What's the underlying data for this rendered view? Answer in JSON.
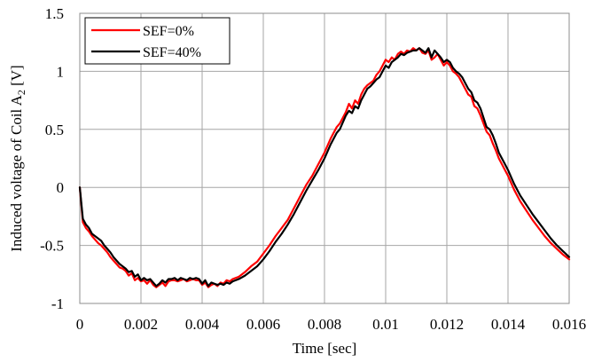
{
  "chart_data": {
    "type": "line",
    "title": "",
    "xlabel": "Time [sec]",
    "ylabel_main": "Induced voltage of Coil A",
    "ylabel_sub": "2",
    "ylabel_unit": " [V]",
    "xlim": [
      0,
      0.016
    ],
    "ylim": [
      -1,
      1.5
    ],
    "xticks": [
      "0",
      "0.002",
      "0.004",
      "0.006",
      "0.008",
      "0.01",
      "0.012",
      "0.014",
      "0.016"
    ],
    "yticks": [
      "1.5",
      "1",
      "0.5",
      "0",
      "-0.5",
      "-1"
    ],
    "grid": true,
    "legend_position": "top-left",
    "series": [
      {
        "name": "SEF=0%",
        "color": "#ff0000",
        "x": [
          0,
          0.0001,
          0.0002,
          0.0003,
          0.0004,
          0.0005,
          0.0006,
          0.0007,
          0.0008,
          0.0009,
          0.001,
          0.0011,
          0.0012,
          0.0013,
          0.0014,
          0.0015,
          0.0016,
          0.0017,
          0.0018,
          0.0019,
          0.002,
          0.0021,
          0.0022,
          0.0023,
          0.0024,
          0.0025,
          0.0026,
          0.0027,
          0.0028,
          0.0029,
          0.003,
          0.0031,
          0.0032,
          0.0033,
          0.0034,
          0.0035,
          0.0036,
          0.0037,
          0.0038,
          0.0039,
          0.004,
          0.0041,
          0.0042,
          0.0043,
          0.0044,
          0.0045,
          0.0046,
          0.0047,
          0.0048,
          0.0049,
          0.005,
          0.0052,
          0.0054,
          0.0056,
          0.0058,
          0.006,
          0.0062,
          0.0064,
          0.0066,
          0.0068,
          0.007,
          0.0072,
          0.0074,
          0.0076,
          0.0078,
          0.008,
          0.0082,
          0.0084,
          0.0085,
          0.0086,
          0.0087,
          0.0088,
          0.0089,
          0.009,
          0.0091,
          0.0092,
          0.0093,
          0.0094,
          0.0095,
          0.0096,
          0.0097,
          0.0098,
          0.0099,
          0.01,
          0.0101,
          0.0102,
          0.0103,
          0.0104,
          0.0105,
          0.0106,
          0.0107,
          0.0108,
          0.0109,
          0.011,
          0.0111,
          0.0112,
          0.0113,
          0.0114,
          0.0115,
          0.0116,
          0.0117,
          0.0118,
          0.0119,
          0.012,
          0.0121,
          0.0122,
          0.0123,
          0.0124,
          0.0125,
          0.0126,
          0.0127,
          0.0128,
          0.0129,
          0.013,
          0.0131,
          0.0132,
          0.0133,
          0.0134,
          0.0135,
          0.0136,
          0.0137,
          0.0138,
          0.0139,
          0.014,
          0.0142,
          0.0144,
          0.0146,
          0.0148,
          0.015,
          0.0152,
          0.0154,
          0.0156,
          0.0158,
          0.016
        ],
        "values": [
          0,
          -0.3,
          -0.35,
          -0.38,
          -0.42,
          -0.45,
          -0.48,
          -0.5,
          -0.53,
          -0.56,
          -0.6,
          -0.63,
          -0.66,
          -0.69,
          -0.7,
          -0.72,
          -0.76,
          -0.74,
          -0.8,
          -0.78,
          -0.81,
          -0.8,
          -0.83,
          -0.8,
          -0.84,
          -0.86,
          -0.84,
          -0.82,
          -0.85,
          -0.81,
          -0.8,
          -0.8,
          -0.81,
          -0.8,
          -0.79,
          -0.81,
          -0.8,
          -0.79,
          -0.8,
          -0.8,
          -0.84,
          -0.82,
          -0.86,
          -0.84,
          -0.83,
          -0.85,
          -0.82,
          -0.83,
          -0.8,
          -0.81,
          -0.79,
          -0.77,
          -0.73,
          -0.68,
          -0.64,
          -0.57,
          -0.5,
          -0.42,
          -0.35,
          -0.28,
          -0.18,
          -0.08,
          0.02,
          0.1,
          0.2,
          0.3,
          0.42,
          0.52,
          0.55,
          0.6,
          0.65,
          0.72,
          0.68,
          0.75,
          0.72,
          0.8,
          0.85,
          0.88,
          0.9,
          0.92,
          0.97,
          1.0,
          1.05,
          1.1,
          1.08,
          1.12,
          1.1,
          1.15,
          1.17,
          1.15,
          1.18,
          1.17,
          1.2,
          1.18,
          1.2,
          1.16,
          1.15,
          1.18,
          1.1,
          1.12,
          1.15,
          1.1,
          1.05,
          1.08,
          1.05,
          1.0,
          0.98,
          0.95,
          0.9,
          0.85,
          0.8,
          0.78,
          0.7,
          0.68,
          0.62,
          0.55,
          0.48,
          0.45,
          0.38,
          0.32,
          0.25,
          0.2,
          0.15,
          0.1,
          -0.02,
          -0.12,
          -0.2,
          -0.28,
          -0.35,
          -0.42,
          -0.48,
          -0.53,
          -0.58,
          -0.62
        ]
      },
      {
        "name": "SEF=40%",
        "color": "#000000",
        "x": [
          0,
          0.0001,
          0.0002,
          0.0003,
          0.0004,
          0.0005,
          0.0006,
          0.0007,
          0.0008,
          0.0009,
          0.001,
          0.0011,
          0.0012,
          0.0013,
          0.0014,
          0.0015,
          0.0016,
          0.0017,
          0.0018,
          0.0019,
          0.002,
          0.0021,
          0.0022,
          0.0023,
          0.0024,
          0.0025,
          0.0026,
          0.0027,
          0.0028,
          0.0029,
          0.003,
          0.0031,
          0.0032,
          0.0033,
          0.0034,
          0.0035,
          0.0036,
          0.0037,
          0.0038,
          0.0039,
          0.004,
          0.0041,
          0.0042,
          0.0043,
          0.0044,
          0.0045,
          0.0046,
          0.0047,
          0.0048,
          0.0049,
          0.005,
          0.0052,
          0.0054,
          0.0056,
          0.0058,
          0.006,
          0.0062,
          0.0064,
          0.0066,
          0.0068,
          0.007,
          0.0072,
          0.0074,
          0.0076,
          0.0078,
          0.008,
          0.0082,
          0.0084,
          0.0085,
          0.0086,
          0.0087,
          0.0088,
          0.0089,
          0.009,
          0.0091,
          0.0092,
          0.0093,
          0.0094,
          0.0095,
          0.0096,
          0.0097,
          0.0098,
          0.0099,
          0.01,
          0.0101,
          0.0102,
          0.0103,
          0.0104,
          0.0105,
          0.0106,
          0.0107,
          0.0108,
          0.0109,
          0.011,
          0.0111,
          0.0112,
          0.0113,
          0.0114,
          0.0115,
          0.0116,
          0.0117,
          0.0118,
          0.0119,
          0.012,
          0.0121,
          0.0122,
          0.0123,
          0.0124,
          0.0125,
          0.0126,
          0.0127,
          0.0128,
          0.0129,
          0.013,
          0.0131,
          0.0132,
          0.0133,
          0.0134,
          0.0135,
          0.0136,
          0.0137,
          0.0138,
          0.0139,
          0.014,
          0.0142,
          0.0144,
          0.0146,
          0.0148,
          0.015,
          0.0152,
          0.0154,
          0.0156,
          0.0158,
          0.016
        ],
        "values": [
          0,
          -0.27,
          -0.32,
          -0.35,
          -0.4,
          -0.42,
          -0.44,
          -0.46,
          -0.5,
          -0.53,
          -0.56,
          -0.6,
          -0.63,
          -0.66,
          -0.68,
          -0.7,
          -0.73,
          -0.72,
          -0.77,
          -0.75,
          -0.8,
          -0.78,
          -0.8,
          -0.79,
          -0.82,
          -0.85,
          -0.83,
          -0.8,
          -0.82,
          -0.79,
          -0.79,
          -0.78,
          -0.8,
          -0.78,
          -0.79,
          -0.8,
          -0.78,
          -0.79,
          -0.78,
          -0.79,
          -0.83,
          -0.8,
          -0.85,
          -0.82,
          -0.83,
          -0.84,
          -0.83,
          -0.84,
          -0.82,
          -0.83,
          -0.81,
          -0.79,
          -0.76,
          -0.72,
          -0.68,
          -0.62,
          -0.55,
          -0.47,
          -0.4,
          -0.32,
          -0.23,
          -0.13,
          -0.03,
          0.06,
          0.15,
          0.25,
          0.37,
          0.47,
          0.5,
          0.56,
          0.62,
          0.66,
          0.64,
          0.7,
          0.68,
          0.75,
          0.8,
          0.85,
          0.87,
          0.9,
          0.93,
          0.95,
          1.0,
          1.05,
          1.03,
          1.08,
          1.1,
          1.12,
          1.15,
          1.14,
          1.16,
          1.17,
          1.18,
          1.18,
          1.2,
          1.18,
          1.16,
          1.2,
          1.12,
          1.18,
          1.15,
          1.12,
          1.08,
          1.1,
          1.08,
          1.03,
          1.0,
          0.98,
          0.95,
          0.9,
          0.85,
          0.82,
          0.75,
          0.73,
          0.68,
          0.6,
          0.52,
          0.5,
          0.45,
          0.38,
          0.3,
          0.25,
          0.2,
          0.15,
          0.03,
          -0.07,
          -0.15,
          -0.23,
          -0.3,
          -0.37,
          -0.44,
          -0.5,
          -0.55,
          -0.6
        ]
      }
    ]
  }
}
